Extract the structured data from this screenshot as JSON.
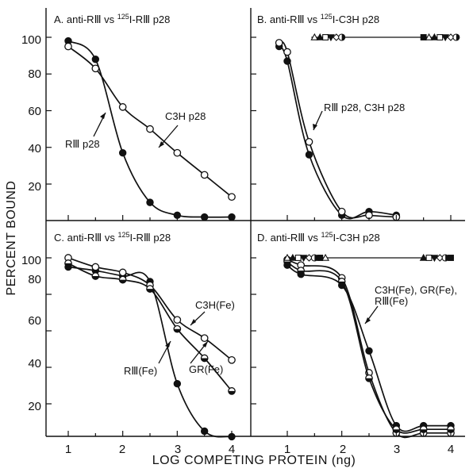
{
  "figure": {
    "ylabel": "PERCENT BOUND",
    "xlabel": "LOG COMPETING PROTEIN (ng)",
    "x_ticks": [
      "1",
      "2",
      "3",
      "4"
    ],
    "y_ticks": [
      "20",
      "40",
      "60",
      "80",
      "100"
    ]
  },
  "chart_data": [
    {
      "panel": "A",
      "type": "line",
      "title_prefix": "A.  anti-RⅢ vs ",
      "title_sup": "125",
      "title_suffix": "I-RⅢ p28",
      "xlim": [
        0.8,
        4.3
      ],
      "ylim": [
        0,
        110
      ],
      "series": [
        {
          "name": "RⅢ p28",
          "marker": "filled-circle",
          "x": [
            1,
            1.5,
            2,
            2.5,
            3,
            3.5,
            4
          ],
          "y": [
            98,
            88,
            37,
            10,
            3,
            2,
            2
          ]
        },
        {
          "name": "C3H p28",
          "marker": "open-circle",
          "x": [
            1,
            1.5,
            2,
            2.5,
            3,
            3.5,
            4
          ],
          "y": [
            95,
            83,
            62,
            50,
            37,
            25,
            13
          ]
        }
      ],
      "annotations": [
        "RⅢ p28",
        "C3H p28"
      ]
    },
    {
      "panel": "B",
      "type": "line",
      "title_prefix": "B.  anti-RⅢ vs ",
      "title_sup": "125",
      "title_suffix": "I-C3H p28",
      "xlim": [
        0.8,
        4.3
      ],
      "ylim": [
        0,
        110
      ],
      "series": [
        {
          "name": "RⅢ p28, C3H p28",
          "marker": "filled-circle",
          "x": [
            0.85,
            1,
            1.4,
            2,
            2.5,
            3
          ],
          "y": [
            95,
            87,
            36,
            3,
            5,
            3
          ]
        },
        {
          "name": "RⅢ p28, C3H p28",
          "marker": "open-circle",
          "x": [
            0.85,
            1,
            1.4,
            2,
            2.5,
            3
          ],
          "y": [
            97,
            92,
            43,
            5,
            3,
            2
          ]
        },
        {
          "name": "",
          "marker": "mixed-shapes",
          "x": [
            1.5,
            1.6,
            1.7,
            1.8,
            1.9,
            2,
            3.5,
            3.6,
            3.7,
            3.8,
            3.9,
            4,
            4.1
          ],
          "y": [
            100,
            100,
            100,
            100,
            100,
            100,
            100,
            100,
            100,
            100,
            100,
            100,
            100
          ]
        }
      ],
      "annotations": [
        "RⅢ p28, C3H p28"
      ]
    },
    {
      "panel": "C",
      "type": "line",
      "title_prefix": "C.  anti-RⅢ vs ",
      "title_sup": "125",
      "title_suffix": "I-RⅢ p28",
      "xlim": [
        0.8,
        4.3
      ],
      "ylim": [
        0,
        110
      ],
      "series": [
        {
          "name": "RⅢ(Fe)",
          "marker": "filled-circle",
          "x": [
            1,
            1.5,
            2,
            2.5,
            3,
            3.5,
            4
          ],
          "y": [
            95,
            93,
            90,
            87,
            31,
            5,
            2
          ]
        },
        {
          "name": "C3H(Fe)",
          "marker": "open-circle",
          "x": [
            1,
            1.5,
            2,
            2.5,
            3,
            3.5,
            4
          ],
          "y": [
            100,
            95,
            92,
            85,
            66,
            56,
            44
          ]
        },
        {
          "name": "GR(Fe)",
          "marker": "half-filled-circle",
          "x": [
            1,
            1.5,
            2,
            2.5,
            3,
            3.5,
            4
          ],
          "y": [
            97,
            90,
            88,
            83,
            61,
            45,
            27
          ]
        }
      ],
      "annotations": [
        "C3H(Fe)",
        "RⅢ(Fe)",
        "GR(Fe)"
      ]
    },
    {
      "panel": "D",
      "type": "line",
      "title_prefix": "D.  anti-RⅢ vs ",
      "title_sup": "125",
      "title_suffix": "I-C3H p28",
      "xlim": [
        0.8,
        4.3
      ],
      "ylim": [
        0,
        110
      ],
      "series": [
        {
          "name": "C3H(Fe), GR(Fe), RⅢ(Fe)",
          "marker": "filled-circle",
          "x": [
            1,
            1.25,
            2,
            2.5,
            3,
            3.5,
            4
          ],
          "y": [
            96,
            91,
            85,
            49,
            8,
            8,
            8
          ]
        },
        {
          "name": "C3H(Fe), GR(Fe), RⅢ(Fe)",
          "marker": "open-circle",
          "x": [
            1,
            1.25,
            2,
            2.5,
            3,
            3.5,
            4
          ],
          "y": [
            99,
            96,
            89,
            37,
            4,
            4,
            4
          ]
        },
        {
          "name": "C3H(Fe), GR(Fe), RⅢ(Fe)",
          "marker": "half-filled-circle",
          "x": [
            1,
            1.25,
            2,
            2.5,
            3,
            3.5,
            4
          ],
          "y": [
            98,
            93,
            87,
            34,
            6,
            6,
            6
          ]
        },
        {
          "name": "",
          "marker": "mixed-shapes",
          "x": [
            1,
            1.1,
            1.2,
            1.3,
            1.4,
            1.5,
            1.6,
            1.7,
            3.5,
            3.6,
            3.7,
            3.8,
            3.9,
            4
          ],
          "y": [
            100,
            100,
            100,
            100,
            100,
            100,
            100,
            100,
            100,
            100,
            100,
            100,
            100,
            100
          ]
        }
      ],
      "annotations": [
        "C3H(Fe), GR(Fe),",
        "RⅢ(Fe)"
      ]
    }
  ]
}
